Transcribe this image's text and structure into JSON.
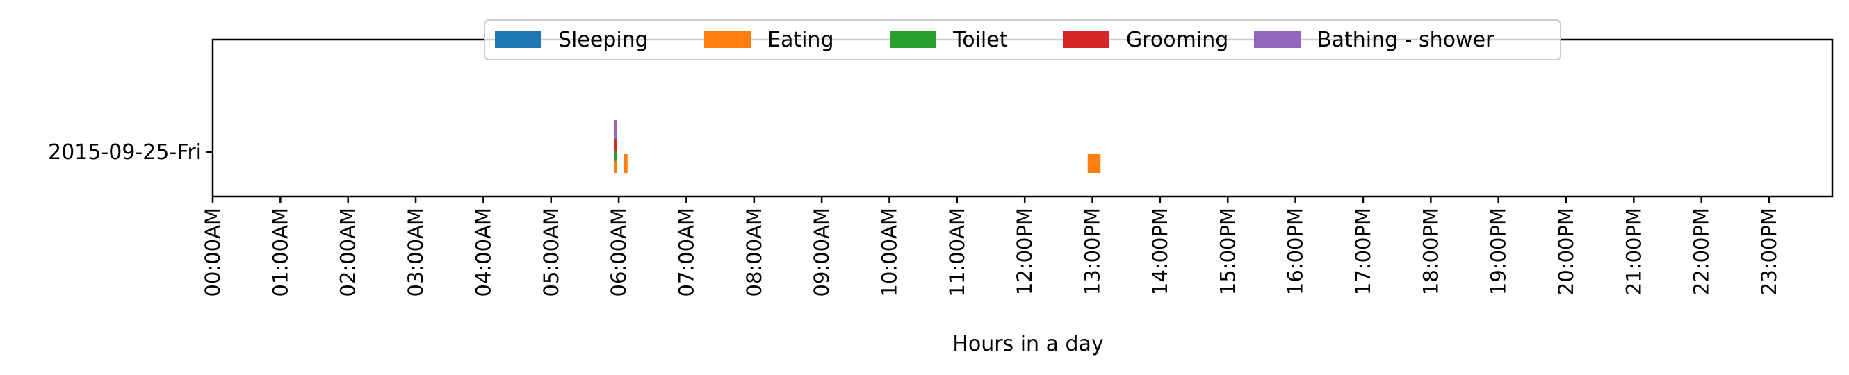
{
  "chart_data": {
    "type": "bar",
    "subtype": "horizontal-timeline",
    "title": "",
    "xlabel": "Hours in a day",
    "ylabel": "",
    "xlim_hours": [
      0,
      24
    ],
    "x_ticks": [
      "00:00AM",
      "01:00AM",
      "02:00AM",
      "03:00AM",
      "04:00AM",
      "05:00AM",
      "06:00AM",
      "07:00AM",
      "08:00AM",
      "09:00AM",
      "10:00AM",
      "11:00AM",
      "12:00PM",
      "13:00PM",
      "14:00PM",
      "15:00PM",
      "16:00PM",
      "17:00PM",
      "18:00PM",
      "19:00PM",
      "20:00PM",
      "21:00PM",
      "22:00PM",
      "23:00PM"
    ],
    "categories": [
      "2015-09-25-Fri"
    ],
    "grid": false,
    "legend_position": "top-center",
    "series": [
      {
        "name": "Sleeping",
        "color": "#1f77b4",
        "bars": []
      },
      {
        "name": "Eating",
        "color": "#ff7f0e",
        "bars": [
          {
            "day": "2015-09-25-Fri",
            "start": 5.93,
            "end": 5.97
          },
          {
            "day": "2015-09-25-Fri",
            "start": 6.08,
            "end": 6.13
          },
          {
            "day": "2015-09-25-Fri",
            "start": 12.93,
            "end": 13.12
          }
        ]
      },
      {
        "name": "Toilet",
        "color": "#2ca02c",
        "bars": [
          {
            "day": "2015-09-25-Fri",
            "start": 5.93,
            "end": 5.97
          }
        ]
      },
      {
        "name": "Grooming",
        "color": "#d62728",
        "bars": [
          {
            "day": "2015-09-25-Fri",
            "start": 5.93,
            "end": 5.97
          }
        ]
      },
      {
        "name": "Bathing - shower",
        "color": "#9467bd",
        "bars": [
          {
            "day": "2015-09-25-Fri",
            "start": 5.93,
            "end": 5.97
          }
        ]
      }
    ]
  }
}
